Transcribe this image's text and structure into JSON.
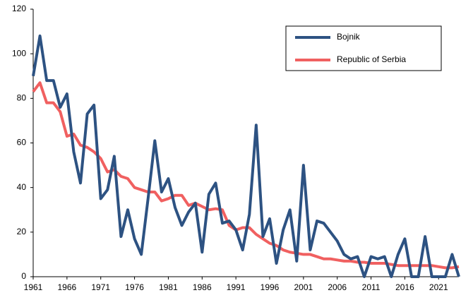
{
  "chart_data": {
    "type": "line",
    "x": [
      1961,
      1962,
      1963,
      1964,
      1965,
      1966,
      1967,
      1968,
      1969,
      1970,
      1971,
      1972,
      1973,
      1974,
      1975,
      1976,
      1977,
      1978,
      1979,
      1980,
      1981,
      1982,
      1983,
      1984,
      1985,
      1986,
      1987,
      1988,
      1989,
      1990,
      1991,
      1992,
      1993,
      1994,
      1995,
      1996,
      1997,
      1998,
      1999,
      2000,
      2001,
      2002,
      2003,
      2004,
      2005,
      2006,
      2007,
      2008,
      2009,
      2010,
      2011,
      2012,
      2013,
      2014,
      2015,
      2016,
      2017,
      2018,
      2019,
      2020,
      2021,
      2022,
      2023,
      2024
    ],
    "series": [
      {
        "name": "Bojnik",
        "color": "#2d5282",
        "values": [
          90,
          108,
          88,
          88,
          76,
          82,
          56,
          42,
          73,
          77,
          35,
          39,
          54,
          18,
          30,
          17,
          10,
          35,
          61,
          38,
          44,
          31,
          23,
          29,
          33,
          11,
          37,
          42,
          24,
          25,
          21,
          12,
          28,
          68,
          18,
          26,
          6,
          21,
          30,
          7,
          50,
          12,
          25,
          24,
          20,
          16,
          10,
          8,
          9,
          0,
          9,
          8,
          9,
          0,
          10,
          17,
          0,
          0,
          18,
          0,
          0,
          0,
          10,
          0
        ]
      },
      {
        "name": "Republic of Serbia",
        "color": "#f06060",
        "values": [
          83,
          87,
          78,
          78,
          74,
          63,
          64,
          59,
          58,
          56,
          53,
          47,
          48,
          45,
          44,
          40,
          39,
          38,
          38,
          34,
          35,
          36.5,
          36.5,
          32,
          33,
          31.5,
          30,
          30.5,
          30,
          23,
          21,
          22,
          22,
          19,
          17,
          15,
          14,
          12,
          11,
          10.5,
          10,
          10,
          9,
          8,
          8,
          7.5,
          7,
          7,
          6.5,
          6.5,
          6,
          6,
          6,
          5.5,
          5,
          5,
          5,
          5,
          5,
          5,
          4.5,
          4,
          4,
          4.5
        ]
      }
    ],
    "xlim": [
      1961,
      2024
    ],
    "xticks": [
      1961,
      1966,
      1971,
      1976,
      1981,
      1986,
      1991,
      1996,
      2001,
      2006,
      2011,
      2016,
      2021
    ],
    "ylim": [
      0,
      120
    ],
    "yticks": [
      0,
      20,
      40,
      60,
      80,
      100,
      120
    ],
    "grid": false,
    "legend": "upper right"
  }
}
